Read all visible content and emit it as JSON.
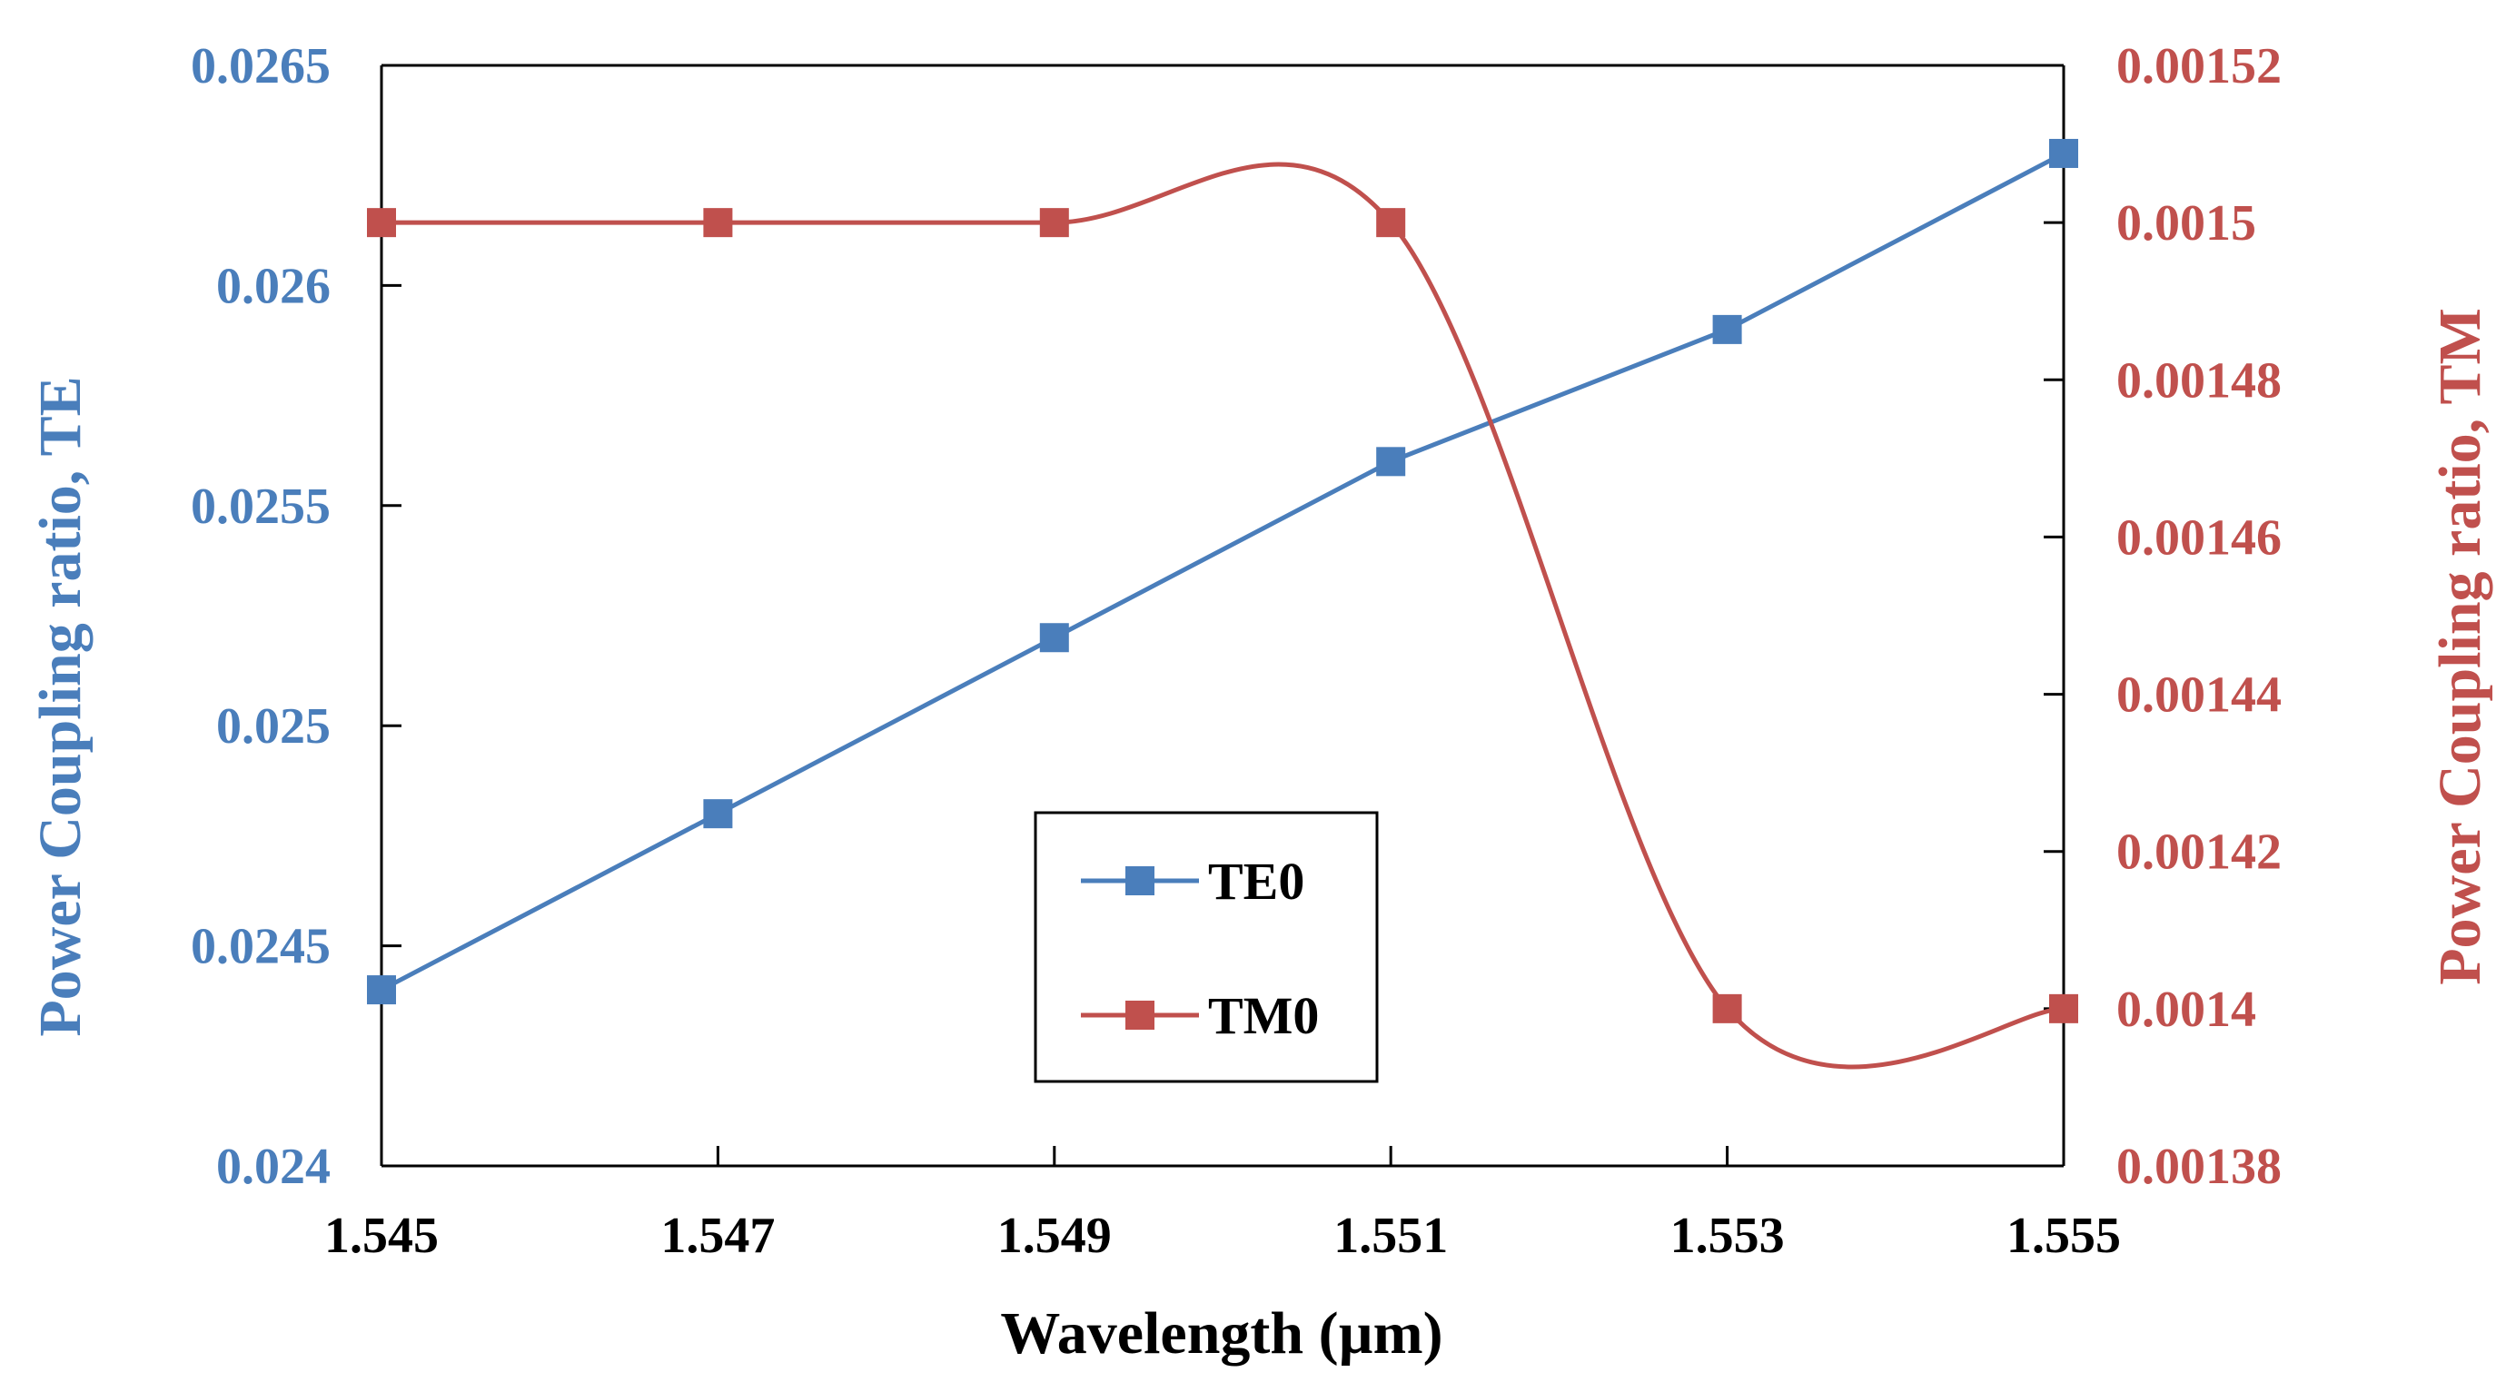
{
  "chart_data": {
    "type": "line",
    "xlabel": "Wavelength (µm)",
    "ylabel_left": "Power Coupling ratio, TE",
    "ylabel_right": "Power Coupling ratio, TM",
    "x_ticks": [
      "1.545",
      "1.547",
      "1.549",
      "1.551",
      "1.553",
      "1.555"
    ],
    "y_left_ticks": [
      "0.024",
      "0.0245",
      "0.025",
      "0.0255",
      "0.026",
      "0.0265"
    ],
    "y_right_ticks": [
      "0.00138",
      "0.0014",
      "0.00142",
      "0.00144",
      "0.00146",
      "0.00148",
      "0.0015",
      "0.00152"
    ],
    "xlim": [
      1.545,
      1.555
    ],
    "ylim_left": [
      0.024,
      0.0265
    ],
    "ylim_right": [
      0.00138,
      0.00152
    ],
    "grid": false,
    "legend_position": "center",
    "x": [
      1.545,
      1.547,
      1.549,
      1.551,
      1.553,
      1.555
    ],
    "series": [
      {
        "name": "TE0",
        "axis": "left",
        "color": "#4a7ebb",
        "marker": "square",
        "smooth": false,
        "values": [
          0.0244,
          0.0248,
          0.0252,
          0.0256,
          0.0259,
          0.0263
        ]
      },
      {
        "name": "TM0",
        "axis": "right",
        "color": "#c0504d",
        "marker": "square",
        "smooth": true,
        "values": [
          0.0015,
          0.0015,
          0.0015,
          0.0015,
          0.0014,
          0.0014
        ]
      }
    ],
    "colors": {
      "left_axis": "#4a7ebb",
      "right_axis": "#c0504d",
      "axes": "#000000"
    }
  }
}
